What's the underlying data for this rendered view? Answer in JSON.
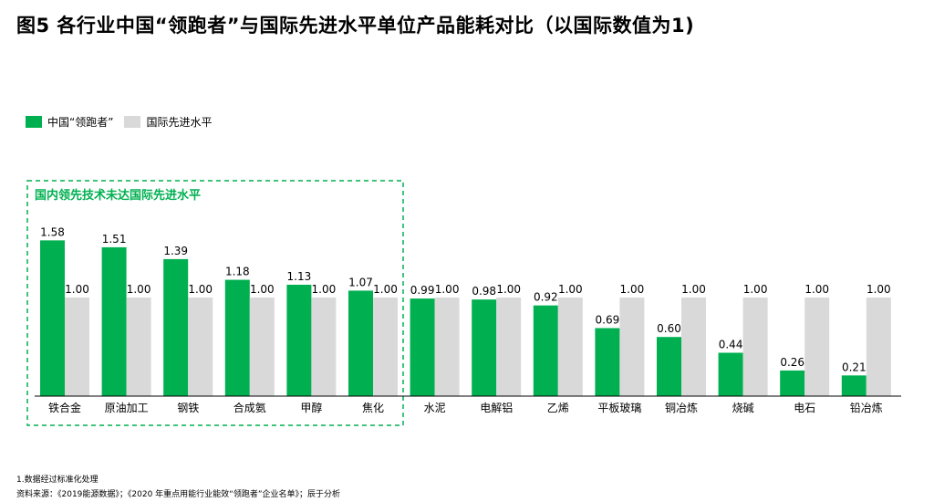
{
  "header": {
    "title": "图5 各行业中国“领跑者”与国际先进水平单位产品能耗对比（以国际数值为1)"
  },
  "legend": {
    "china_label": "中国“领跑者”",
    "intl_label": "国际先进水平"
  },
  "annotation": {
    "box_label": "国内领先技术未达国际先进水平"
  },
  "footnotes": {
    "note": "1.数据经过标准化处理",
    "source": "资料来源：《2019能源数据》；《2020 年重点用能行业能效“领跑者”企业名单》；辰于分析"
  },
  "colors": {
    "china": "#00b050",
    "intl": "#d9d9d9",
    "box": "#00b050",
    "axis": "#000000"
  },
  "chart_data": {
    "type": "bar",
    "categories": [
      "铁合金",
      "原油加工",
      "钢铁",
      "合成氨",
      "甲醇",
      "焦化",
      "水泥",
      "电解铝",
      "乙烯",
      "平板玻璃",
      "铜冶炼",
      "烧碱",
      "电石",
      "铅冶炼"
    ],
    "series": [
      {
        "name": "中国“领跑者”",
        "values": [
          1.58,
          1.51,
          1.39,
          1.18,
          1.13,
          1.07,
          0.99,
          0.98,
          0.92,
          0.69,
          0.6,
          0.44,
          0.26,
          0.21
        ]
      },
      {
        "name": "国际先进水平",
        "values": [
          1.0,
          1.0,
          1.0,
          1.0,
          1.0,
          1.0,
          1.0,
          1.0,
          1.0,
          1.0,
          1.0,
          1.0,
          1.0,
          1.0
        ]
      }
    ],
    "ylim": [
      0,
      1.58
    ],
    "value_labels": {
      "china": [
        "1.58",
        "1.51",
        "1.39",
        "1.18",
        "1.13",
        "1.07",
        "0.99",
        "0.98",
        "0.92",
        "0.69",
        "0.60",
        "0.44",
        "0.26",
        "0.21"
      ],
      "intl": [
        "1.00",
        "1.00",
        "1.00",
        "1.00",
        "1.00",
        "1.00",
        "1.00",
        "1.00",
        "1.00",
        "1.00",
        "1.00",
        "1.00",
        "1.00",
        "1.00"
      ]
    },
    "highlight_first_n": 6,
    "grid": false,
    "legend_position": "top-left"
  }
}
